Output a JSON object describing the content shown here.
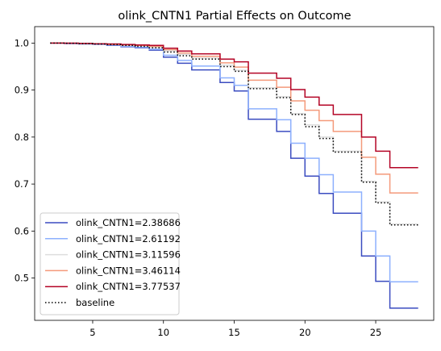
{
  "chart_data": {
    "type": "line",
    "step": "post",
    "title": "olink_CNTN1 Partial Effects on Outcome",
    "xlabel": "",
    "ylabel": "",
    "xlim": [
      0.9,
      29.1
    ],
    "ylim": [
      0.41,
      1.035
    ],
    "xticks": [
      5,
      10,
      15,
      20,
      25
    ],
    "yticks": [
      0.5,
      0.6,
      0.7,
      0.8,
      0.9,
      1.0
    ],
    "ytick_labels": [
      "0.5",
      "0.6",
      "0.7",
      "0.8",
      "0.9",
      "1.0"
    ],
    "grid": false,
    "legend_position": "lower-left",
    "series": [
      {
        "name": "olink_CNTN1=2.38686",
        "color": "#3b4cc0",
        "style": "solid",
        "x": [
          2,
          3,
          4,
          5,
          6,
          7,
          8,
          9,
          10,
          11,
          12,
          14,
          15,
          16,
          18,
          19,
          20,
          21,
          22,
          24,
          25,
          26,
          28
        ],
        "y": [
          1.0,
          0.999,
          0.998,
          0.997,
          0.995,
          0.992,
          0.99,
          0.985,
          0.97,
          0.957,
          0.943,
          0.916,
          0.898,
          0.838,
          0.812,
          0.755,
          0.717,
          0.68,
          0.638,
          0.547,
          0.493,
          0.436,
          0.436
        ]
      },
      {
        "name": "olink_CNTN1=2.61192",
        "color": "#8db0fe",
        "style": "solid",
        "x": [
          2,
          3,
          4,
          5,
          6,
          7,
          8,
          9,
          10,
          11,
          12,
          14,
          15,
          16,
          18,
          19,
          20,
          21,
          22,
          24,
          25,
          26,
          28
        ],
        "y": [
          1.0,
          0.999,
          0.998,
          0.997,
          0.996,
          0.993,
          0.991,
          0.987,
          0.974,
          0.963,
          0.951,
          0.926,
          0.91,
          0.86,
          0.837,
          0.787,
          0.755,
          0.72,
          0.683,
          0.6,
          0.547,
          0.492,
          0.492
        ]
      },
      {
        "name": "olink_CNTN1=3.11596",
        "color": "#dddddd",
        "style": "solid",
        "x": [
          2,
          3,
          4,
          5,
          6,
          7,
          8,
          9,
          10,
          11,
          12,
          14,
          15,
          16,
          18,
          19,
          20,
          21,
          22,
          24,
          25,
          26,
          28
        ],
        "y": [
          1.0,
          0.9995,
          0.999,
          0.998,
          0.997,
          0.995,
          0.994,
          0.991,
          0.983,
          0.976,
          0.968,
          0.953,
          0.942,
          0.905,
          0.886,
          0.85,
          0.826,
          0.8,
          0.77,
          0.706,
          0.662,
          0.615,
          0.615
        ]
      },
      {
        "name": "olink_CNTN1=3.46114",
        "color": "#f49a7b",
        "style": "solid",
        "x": [
          2,
          3,
          4,
          5,
          6,
          7,
          8,
          9,
          10,
          11,
          12,
          14,
          15,
          16,
          18,
          19,
          20,
          21,
          22,
          24,
          25,
          26,
          28
        ],
        "y": [
          1.0,
          0.9995,
          0.999,
          0.998,
          0.997,
          0.996,
          0.995,
          0.993,
          0.986,
          0.979,
          0.972,
          0.958,
          0.949,
          0.921,
          0.906,
          0.877,
          0.857,
          0.835,
          0.812,
          0.757,
          0.721,
          0.681,
          0.681
        ]
      },
      {
        "name": "olink_CNTN1=3.77537",
        "color": "#b40426",
        "style": "solid",
        "x": [
          2,
          3,
          4,
          5,
          6,
          7,
          8,
          9,
          10,
          11,
          12,
          14,
          15,
          16,
          18,
          19,
          20,
          21,
          22,
          24,
          25,
          26,
          28
        ],
        "y": [
          1.0,
          0.9997,
          0.9993,
          0.9985,
          0.998,
          0.997,
          0.996,
          0.995,
          0.989,
          0.983,
          0.977,
          0.966,
          0.96,
          0.936,
          0.925,
          0.901,
          0.885,
          0.868,
          0.848,
          0.8,
          0.77,
          0.735,
          0.735
        ]
      },
      {
        "name": "baseline",
        "color": "#000000",
        "style": "dotted",
        "x": [
          2,
          3,
          4,
          5,
          6,
          7,
          8,
          9,
          10,
          11,
          12,
          14,
          15,
          16,
          18,
          19,
          20,
          21,
          22,
          24,
          25,
          26,
          28
        ],
        "y": [
          1.0,
          0.9995,
          0.999,
          0.998,
          0.997,
          0.995,
          0.993,
          0.99,
          0.981,
          0.973,
          0.966,
          0.95,
          0.94,
          0.903,
          0.884,
          0.848,
          0.822,
          0.797,
          0.768,
          0.704,
          0.66,
          0.613,
          0.613
        ]
      }
    ]
  }
}
